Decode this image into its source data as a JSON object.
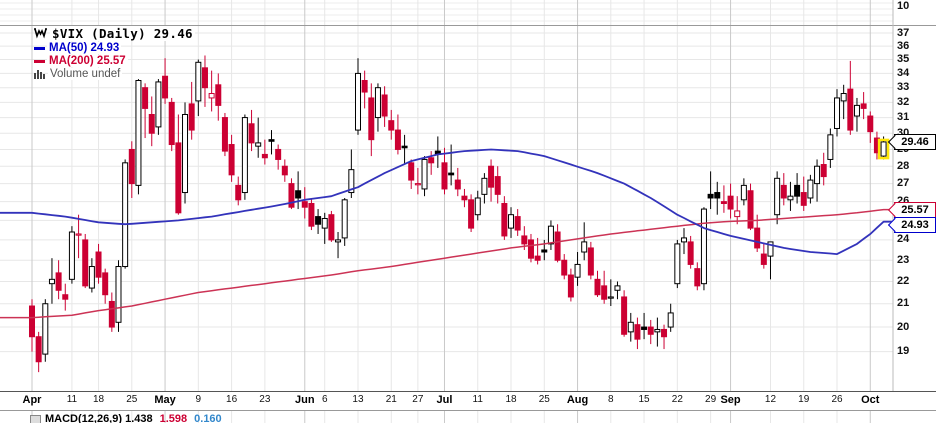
{
  "header": {
    "symbol_line": "$VIX (Daily) 29.46",
    "ma50_label": "MA(50) 24.93",
    "ma200_label": "MA(200) 25.57",
    "volume_label": "Volume undef"
  },
  "colors": {
    "up_candle": "#000000",
    "down_candle": "#cc0033",
    "ma50_line": "#3333bb",
    "ma200_line": "#cc3355",
    "grid_light": "#e7e7e7",
    "grid_month": "#c9c9c9",
    "panel_border": "#999999",
    "highlight_yellow": "#ffe60a",
    "background": "#ffffff"
  },
  "axis": {
    "top_panel_label": "10",
    "price_labels": [
      37,
      36,
      35,
      34,
      33,
      32,
      31,
      30,
      29,
      28,
      27,
      26,
      25,
      24,
      23,
      22,
      21,
      20,
      19
    ],
    "callouts": [
      {
        "value": "29.46",
        "price": 29.46,
        "border": "#000000",
        "name": "price-callout-last"
      },
      {
        "value": "25.57",
        "price": 25.57,
        "border": "#cc0033",
        "name": "price-callout-ma200"
      },
      {
        "value": "24.93",
        "price": 24.93,
        "border": "#0000cc",
        "name": "price-callout-ma50"
      }
    ]
  },
  "macd": {
    "parts": [
      {
        "text": "MACD(12,26,9) 1.438",
        "color": "black"
      },
      {
        "text": "1.598",
        "color": "red"
      },
      {
        "text": "0.160",
        "color": "blue"
      }
    ]
  },
  "chart_data": {
    "type": "candlestick",
    "symbol": "$VIX",
    "timeframe": "Daily",
    "last_close": 29.46,
    "scale": "log",
    "ylim": [
      17.5,
      37.9
    ],
    "x_ticks": [
      {
        "i": 0,
        "label": "Apr",
        "bold": true
      },
      {
        "i": 6,
        "label": "11"
      },
      {
        "i": 10,
        "label": "18"
      },
      {
        "i": 15,
        "label": "25"
      },
      {
        "i": 20,
        "label": "May",
        "bold": true
      },
      {
        "i": 25,
        "label": "9"
      },
      {
        "i": 30,
        "label": "16"
      },
      {
        "i": 35,
        "label": "23"
      },
      {
        "i": 41,
        "label": "Jun",
        "bold": true
      },
      {
        "i": 44,
        "label": "6"
      },
      {
        "i": 49,
        "label": "13"
      },
      {
        "i": 54,
        "label": "21"
      },
      {
        "i": 58,
        "label": "27"
      },
      {
        "i": 62,
        "label": "Jul",
        "bold": true
      },
      {
        "i": 67,
        "label": "11"
      },
      {
        "i": 72,
        "label": "18"
      },
      {
        "i": 77,
        "label": "25"
      },
      {
        "i": 82,
        "label": "Aug",
        "bold": true
      },
      {
        "i": 87,
        "label": "8"
      },
      {
        "i": 92,
        "label": "15"
      },
      {
        "i": 97,
        "label": "22"
      },
      {
        "i": 102,
        "label": "29"
      },
      {
        "i": 105,
        "label": "Sep",
        "bold": true
      },
      {
        "i": 111,
        "label": "12"
      },
      {
        "i": 116,
        "label": "19"
      },
      {
        "i": 121,
        "label": "26"
      },
      {
        "i": 126,
        "label": "Oct",
        "bold": true
      }
    ],
    "dates": [
      "4/1",
      "4/4",
      "4/5",
      "4/6",
      "4/7",
      "4/8",
      "4/11",
      "4/12",
      "4/13",
      "4/14",
      "4/18",
      "4/19",
      "4/20",
      "4/21",
      "4/22",
      "4/25",
      "4/26",
      "4/27",
      "4/28",
      "4/29",
      "5/2",
      "5/3",
      "5/4",
      "5/5",
      "5/6",
      "5/9",
      "5/10",
      "5/11",
      "5/12",
      "5/13",
      "5/16",
      "5/17",
      "5/18",
      "5/19",
      "5/20",
      "5/23",
      "5/24",
      "5/25",
      "5/26",
      "5/27",
      "5/31",
      "6/1",
      "6/2",
      "6/3",
      "6/6",
      "6/7",
      "6/8",
      "6/9",
      "6/10",
      "6/13",
      "6/14",
      "6/15",
      "6/16",
      "6/17",
      "6/21",
      "6/22",
      "6/23",
      "6/24",
      "6/27",
      "6/28",
      "6/29",
      "6/30",
      "7/1",
      "7/5",
      "7/6",
      "7/7",
      "7/8",
      "7/11",
      "7/12",
      "7/13",
      "7/14",
      "7/15",
      "7/18",
      "7/19",
      "7/20",
      "7/21",
      "7/22",
      "7/25",
      "7/26",
      "7/27",
      "7/28",
      "7/29",
      "8/1",
      "8/2",
      "8/3",
      "8/4",
      "8/5",
      "8/8",
      "8/9",
      "8/10",
      "8/11",
      "8/12",
      "8/15",
      "8/16",
      "8/17",
      "8/18",
      "8/19",
      "8/22",
      "8/23",
      "8/24",
      "8/25",
      "8/26",
      "8/29",
      "8/30",
      "8/31",
      "9/1",
      "9/2",
      "9/6",
      "9/7",
      "9/8",
      "9/9",
      "9/12",
      "9/13",
      "9/14",
      "9/15",
      "9/16",
      "9/19",
      "9/20",
      "9/21",
      "9/22",
      "9/23",
      "9/26",
      "9/27",
      "9/28",
      "9/29",
      "9/30",
      "10/3",
      "10/4",
      "10/5"
    ],
    "ohlc": [
      [
        20.9,
        21.2,
        19.0,
        19.6
      ],
      [
        19.6,
        19.8,
        18.2,
        18.6
      ],
      [
        18.9,
        21.2,
        18.6,
        21.0
      ],
      [
        21.9,
        23.1,
        21.0,
        22.1
      ],
      [
        22.4,
        23.0,
        21.2,
        21.6
      ],
      [
        21.4,
        21.9,
        20.7,
        21.2
      ],
      [
        22.1,
        24.7,
        21.9,
        24.4
      ],
      [
        24.3,
        25.3,
        23.1,
        24.3
      ],
      [
        24.0,
        24.3,
        21.7,
        21.8
      ],
      [
        21.7,
        23.1,
        21.5,
        22.7
      ],
      [
        23.4,
        23.8,
        21.9,
        22.2
      ],
      [
        22.4,
        22.6,
        21.0,
        21.4
      ],
      [
        21.1,
        21.5,
        19.8,
        20.0
      ],
      [
        20.2,
        23.0,
        19.8,
        22.7
      ],
      [
        22.7,
        28.4,
        22.6,
        28.2
      ],
      [
        29.0,
        29.5,
        26.2,
        27.0
      ],
      [
        26.9,
        33.6,
        26.4,
        33.5
      ],
      [
        33.0,
        33.3,
        29.7,
        31.6
      ],
      [
        31.2,
        32.4,
        29.2,
        30.0
      ],
      [
        30.4,
        33.6,
        29.9,
        33.4
      ],
      [
        33.8,
        35.1,
        31.9,
        32.3
      ],
      [
        32.0,
        32.3,
        28.9,
        29.3
      ],
      [
        29.4,
        31.2,
        25.3,
        25.4
      ],
      [
        26.5,
        32.0,
        25.9,
        31.2
      ],
      [
        31.9,
        33.4,
        29.6,
        30.2
      ],
      [
        32.1,
        35.0,
        31.1,
        34.8
      ],
      [
        34.4,
        35.3,
        31.7,
        33.0
      ],
      [
        32.3,
        34.2,
        31.4,
        32.6
      ],
      [
        33.2,
        34.0,
        30.8,
        31.8
      ],
      [
        31.0,
        31.3,
        28.6,
        28.9
      ],
      [
        29.3,
        29.9,
        27.1,
        27.5
      ],
      [
        26.9,
        27.4,
        25.8,
        26.1
      ],
      [
        26.5,
        31.2,
        26.1,
        31.0
      ],
      [
        30.6,
        31.5,
        28.9,
        29.4
      ],
      [
        29.2,
        31.0,
        28.5,
        29.4
      ],
      [
        28.7,
        29.6,
        28.1,
        28.5
      ],
      [
        29.6,
        30.2,
        28.7,
        29.5
      ],
      [
        29.0,
        29.3,
        27.8,
        28.4
      ],
      [
        28.0,
        28.4,
        27.1,
        27.5
      ],
      [
        27.0,
        27.3,
        25.6,
        25.7
      ],
      [
        26.6,
        27.7,
        25.6,
        26.2
      ],
      [
        26.0,
        26.8,
        25.1,
        25.7
      ],
      [
        25.9,
        26.2,
        24.5,
        24.7
      ],
      [
        25.2,
        25.6,
        24.3,
        24.8
      ],
      [
        24.6,
        25.4,
        23.8,
        25.1
      ],
      [
        25.3,
        25.5,
        23.9,
        24.0
      ],
      [
        23.9,
        24.4,
        23.1,
        24.0
      ],
      [
        24.1,
        26.2,
        23.7,
        26.1
      ],
      [
        26.5,
        29.0,
        26.2,
        27.8
      ],
      [
        30.2,
        35.1,
        29.9,
        34.0
      ],
      [
        33.5,
        34.2,
        31.6,
        32.7
      ],
      [
        32.3,
        33.3,
        28.6,
        29.6
      ],
      [
        31.0,
        33.3,
        30.1,
        33.0
      ],
      [
        32.5,
        33.1,
        30.4,
        31.1
      ],
      [
        30.8,
        31.5,
        29.6,
        30.2
      ],
      [
        30.2,
        31.2,
        28.7,
        29.0
      ],
      [
        29.2,
        29.9,
        28.1,
        29.1
      ],
      [
        28.2,
        28.4,
        26.7,
        27.2
      ],
      [
        27.0,
        27.9,
        26.4,
        27.0
      ],
      [
        26.7,
        28.6,
        26.3,
        28.4
      ],
      [
        28.5,
        28.9,
        27.5,
        28.2
      ],
      [
        28.9,
        29.8,
        27.9,
        28.7
      ],
      [
        28.2,
        29.1,
        26.4,
        26.7
      ],
      [
        27.6,
        29.3,
        26.9,
        27.5
      ],
      [
        27.2,
        27.9,
        26.3,
        26.7
      ],
      [
        26.3,
        26.7,
        25.7,
        26.1
      ],
      [
        26.1,
        26.4,
        24.4,
        24.6
      ],
      [
        25.3,
        26.6,
        25.0,
        26.2
      ],
      [
        26.4,
        27.6,
        25.9,
        27.3
      ],
      [
        28.0,
        28.4,
        26.0,
        26.8
      ],
      [
        27.4,
        28.0,
        25.9,
        26.4
      ],
      [
        25.9,
        26.3,
        24.0,
        24.2
      ],
      [
        24.6,
        25.7,
        24.1,
        25.3
      ],
      [
        25.2,
        25.6,
        24.2,
        24.5
      ],
      [
        24.2,
        24.7,
        23.5,
        23.8
      ],
      [
        24.0,
        24.3,
        22.9,
        23.1
      ],
      [
        23.2,
        24.1,
        22.8,
        23.0
      ],
      [
        23.5,
        24.0,
        23.0,
        23.4
      ],
      [
        23.8,
        25.0,
        23.5,
        24.7
      ],
      [
        24.4,
        24.8,
        22.9,
        23.0
      ],
      [
        23.0,
        23.3,
        22.1,
        22.3
      ],
      [
        22.3,
        22.6,
        21.1,
        21.3
      ],
      [
        22.2,
        23.4,
        21.8,
        22.8
      ],
      [
        23.4,
        24.9,
        23.0,
        23.9
      ],
      [
        23.6,
        23.9,
        22.1,
        22.3
      ],
      [
        22.1,
        22.5,
        21.3,
        21.4
      ],
      [
        21.8,
        22.5,
        21.0,
        21.2
      ],
      [
        21.3,
        22.1,
        20.9,
        21.3
      ],
      [
        21.6,
        22.0,
        21.2,
        21.8
      ],
      [
        21.3,
        21.6,
        19.6,
        19.7
      ],
      [
        19.8,
        20.6,
        19.4,
        20.2
      ],
      [
        20.1,
        20.4,
        19.1,
        19.5
      ],
      [
        20.0,
        20.6,
        19.5,
        19.9
      ],
      [
        20.0,
        20.3,
        19.3,
        19.7
      ],
      [
        19.8,
        20.4,
        19.2,
        19.9
      ],
      [
        19.9,
        20.1,
        19.1,
        19.6
      ],
      [
        20.0,
        21.0,
        19.8,
        20.6
      ],
      [
        21.9,
        24.0,
        21.7,
        23.8
      ],
      [
        23.9,
        24.6,
        23.3,
        24.1
      ],
      [
        23.9,
        24.2,
        22.6,
        22.8
      ],
      [
        22.6,
        22.9,
        21.6,
        21.8
      ],
      [
        21.9,
        25.7,
        21.6,
        25.6
      ],
      [
        26.4,
        27.7,
        25.6,
        26.2
      ],
      [
        26.5,
        27.1,
        25.3,
        26.2
      ],
      [
        26.0,
        26.9,
        25.4,
        25.9
      ],
      [
        26.3,
        27.0,
        25.1,
        25.6
      ],
      [
        25.2,
        26.3,
        24.8,
        25.5
      ],
      [
        26.1,
        27.3,
        25.8,
        26.9
      ],
      [
        26.6,
        27.0,
        24.5,
        24.6
      ],
      [
        24.6,
        25.3,
        23.4,
        23.6
      ],
      [
        23.3,
        23.8,
        22.6,
        22.8
      ],
      [
        23.2,
        23.9,
        22.1,
        23.9
      ],
      [
        25.3,
        27.7,
        24.8,
        27.3
      ],
      [
        26.9,
        27.6,
        25.8,
        26.2
      ],
      [
        26.1,
        27.1,
        25.5,
        26.3
      ],
      [
        26.9,
        27.6,
        25.9,
        26.3
      ],
      [
        26.5,
        27.4,
        25.5,
        25.8
      ],
      [
        26.2,
        27.5,
        25.9,
        27.2
      ],
      [
        27.0,
        28.4,
        26.0,
        28.0
      ],
      [
        28.1,
        28.8,
        26.9,
        27.4
      ],
      [
        28.4,
        30.3,
        27.9,
        29.9
      ],
      [
        30.3,
        32.9,
        29.8,
        32.3
      ],
      [
        32.1,
        33.2,
        30.9,
        32.6
      ],
      [
        32.9,
        34.9,
        29.9,
        30.2
      ],
      [
        31.1,
        32.3,
        30.1,
        31.8
      ],
      [
        31.9,
        32.7,
        30.9,
        31.6
      ],
      [
        31.1,
        31.4,
        29.4,
        30.1
      ],
      [
        29.7,
        30.1,
        28.4,
        28.8
      ],
      [
        28.6,
        29.8,
        28.4,
        29.46
      ]
    ],
    "ma50": {
      "label": "MA(50)",
      "value": 24.93,
      "points": [
        [
          0,
          25.4
        ],
        [
          5,
          25.2
        ],
        [
          10,
          24.9
        ],
        [
          14,
          24.8
        ],
        [
          18,
          24.9
        ],
        [
          22,
          25.0
        ],
        [
          27,
          25.2
        ],
        [
          32,
          25.5
        ],
        [
          37,
          25.8
        ],
        [
          41,
          26.1
        ],
        [
          45,
          26.3
        ],
        [
          49,
          26.8
        ],
        [
          53,
          27.6
        ],
        [
          57,
          28.3
        ],
        [
          61,
          28.7
        ],
        [
          65,
          28.9
        ],
        [
          69,
          29.0
        ],
        [
          73,
          28.9
        ],
        [
          77,
          28.6
        ],
        [
          81,
          28.1
        ],
        [
          85,
          27.6
        ],
        [
          89,
          27.0
        ],
        [
          93,
          26.2
        ],
        [
          97,
          25.3
        ],
        [
          101,
          24.6
        ],
        [
          105,
          24.2
        ],
        [
          109,
          23.9
        ],
        [
          113,
          23.6
        ],
        [
          117,
          23.4
        ],
        [
          121,
          23.3
        ],
        [
          124,
          23.8
        ],
        [
          126,
          24.3
        ],
        [
          128,
          24.93
        ]
      ]
    },
    "ma200": {
      "label": "MA(200)",
      "value": 25.57,
      "points": [
        [
          0,
          20.4
        ],
        [
          6,
          20.5
        ],
        [
          10,
          20.7
        ],
        [
          15,
          20.9
        ],
        [
          20,
          21.2
        ],
        [
          25,
          21.5
        ],
        [
          30,
          21.7
        ],
        [
          35,
          21.9
        ],
        [
          40,
          22.1
        ],
        [
          45,
          22.3
        ],
        [
          49,
          22.5
        ],
        [
          54,
          22.7
        ],
        [
          58,
          22.9
        ],
        [
          62,
          23.1
        ],
        [
          67,
          23.35
        ],
        [
          72,
          23.6
        ],
        [
          77,
          23.8
        ],
        [
          82,
          24.05
        ],
        [
          87,
          24.3
        ],
        [
          92,
          24.5
        ],
        [
          97,
          24.7
        ],
        [
          101,
          24.85
        ],
        [
          105,
          24.95
        ],
        [
          109,
          25.0
        ],
        [
          113,
          25.1
        ],
        [
          117,
          25.2
        ],
        [
          121,
          25.3
        ],
        [
          124,
          25.4
        ],
        [
          128,
          25.57
        ]
      ]
    }
  }
}
